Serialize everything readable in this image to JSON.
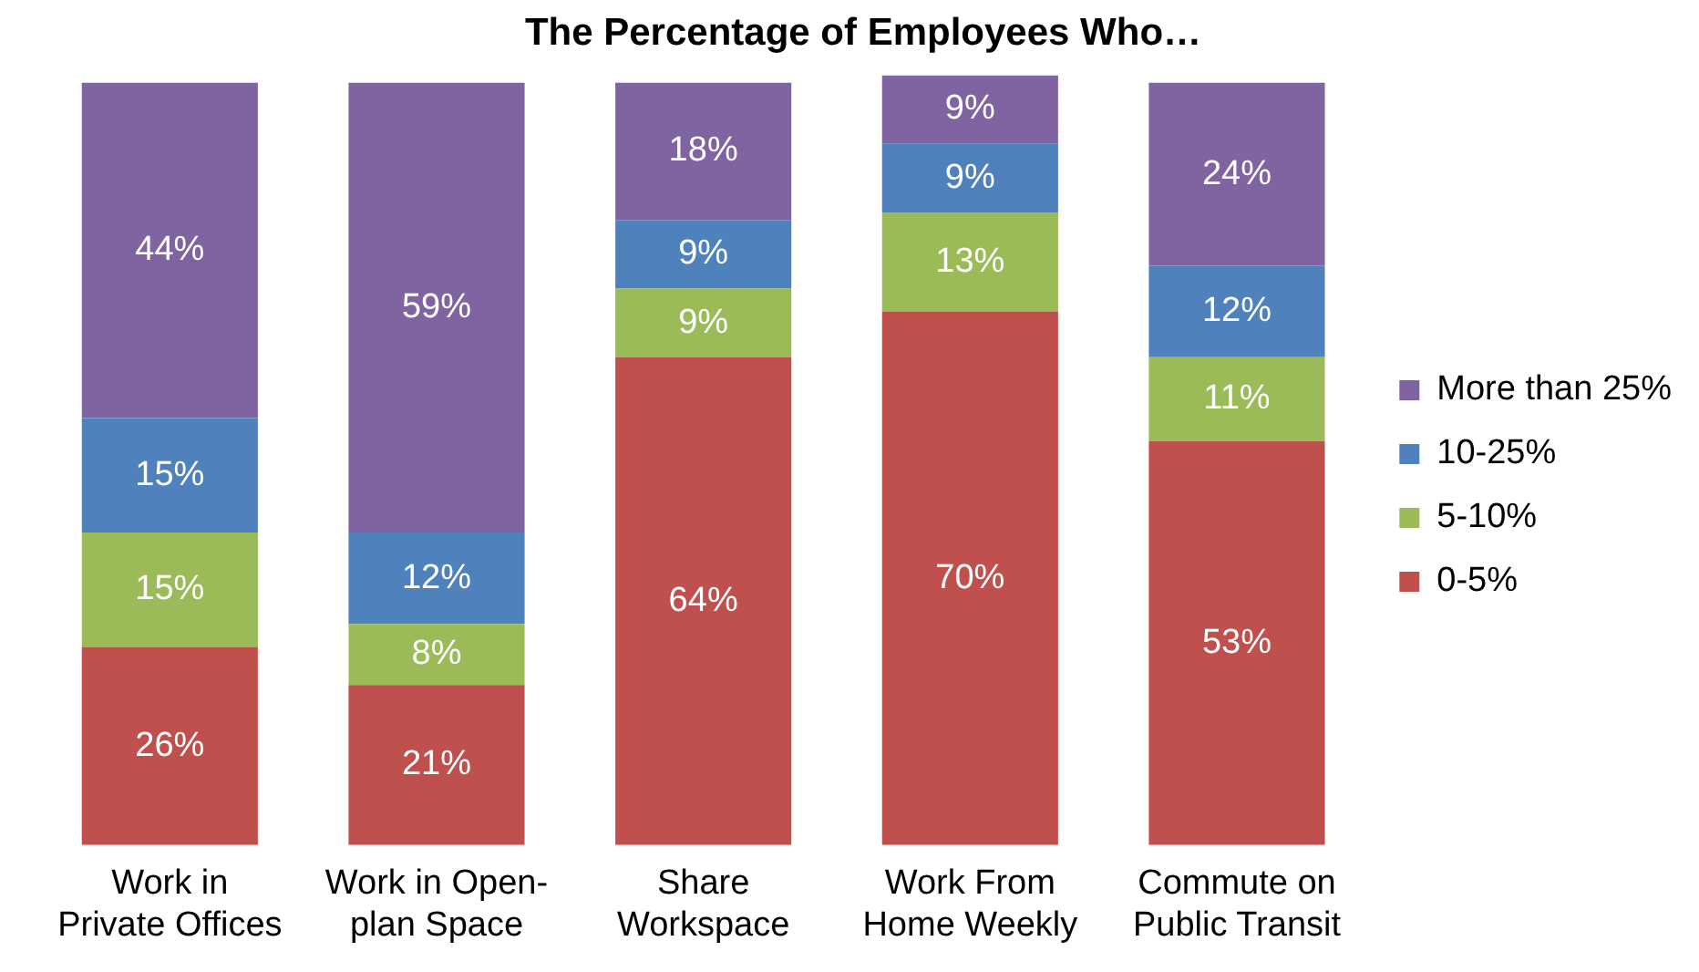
{
  "chart_data": {
    "type": "bar",
    "title": "The Percentage of Employees Who…",
    "stacked": true,
    "grid": false,
    "legend": "right",
    "tick_labels": "x",
    "categories": [
      "Work in\nPrivate Offices",
      "Work in Open-\nplan Space",
      "Share\nWorkspace",
      "Work From\nHome Weekly",
      "Commute on\nPublic Transit"
    ],
    "series": [
      {
        "name": "0-5%",
        "color": "#c0504d",
        "values": [
          26,
          21,
          64,
          70,
          53
        ],
        "value_labels": [
          "26%",
          "21%",
          "64%",
          "70%",
          "53%"
        ]
      },
      {
        "name": "5-10%",
        "color": "#9bbb59",
        "values": [
          15,
          8,
          9,
          13,
          11
        ],
        "value_labels": [
          "15%",
          "8%",
          "9%",
          "13%",
          "11%"
        ]
      },
      {
        "name": "10-25%",
        "color": "#4f81bd",
        "values": [
          15,
          12,
          9,
          9,
          12
        ],
        "value_labels": [
          "15%",
          "12%",
          "9%",
          "9%",
          "12%"
        ]
      },
      {
        "name": "More than 25%",
        "color": "#8064a2",
        "values": [
          44,
          59,
          18,
          9,
          24
        ],
        "value_labels": [
          "44%",
          "59%",
          "18%",
          "9%",
          "24%"
        ]
      }
    ]
  }
}
